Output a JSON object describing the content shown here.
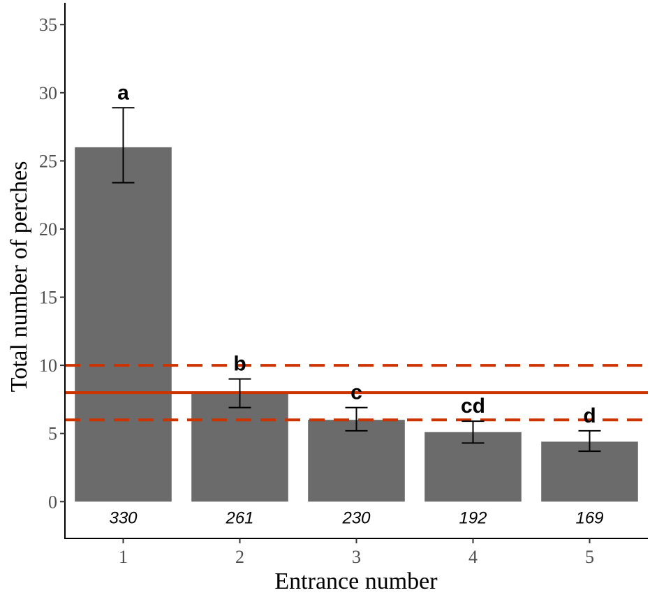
{
  "chart_data": {
    "type": "bar",
    "xlabel": "Entrance number",
    "ylabel": "Total number of perches",
    "ylim": [
      -2.7,
      36.6
    ],
    "yticks": [
      0,
      5,
      10,
      15,
      20,
      25,
      30,
      35
    ],
    "categories": [
      "1",
      "2",
      "3",
      "4",
      "5"
    ],
    "values": [
      26,
      8,
      6,
      5.1,
      4.4
    ],
    "error_low": [
      23.4,
      6.9,
      5.2,
      4.3,
      3.7
    ],
    "error_high": [
      28.9,
      9.0,
      6.9,
      5.9,
      5.2
    ],
    "significance_letters": [
      "a",
      "b",
      "c",
      "cd",
      "d"
    ],
    "count_labels": [
      "330",
      "261",
      "230",
      "192",
      "169"
    ],
    "reference_lines": [
      {
        "value": 8,
        "style": "solid"
      },
      {
        "value": 10,
        "style": "dashed"
      },
      {
        "value": 6,
        "style": "dashed"
      }
    ],
    "colors": {
      "bar": "#6b6b6b",
      "reference_line": "#cc3300",
      "error_bar": "#000000"
    },
    "grid": false,
    "legend": "none"
  }
}
